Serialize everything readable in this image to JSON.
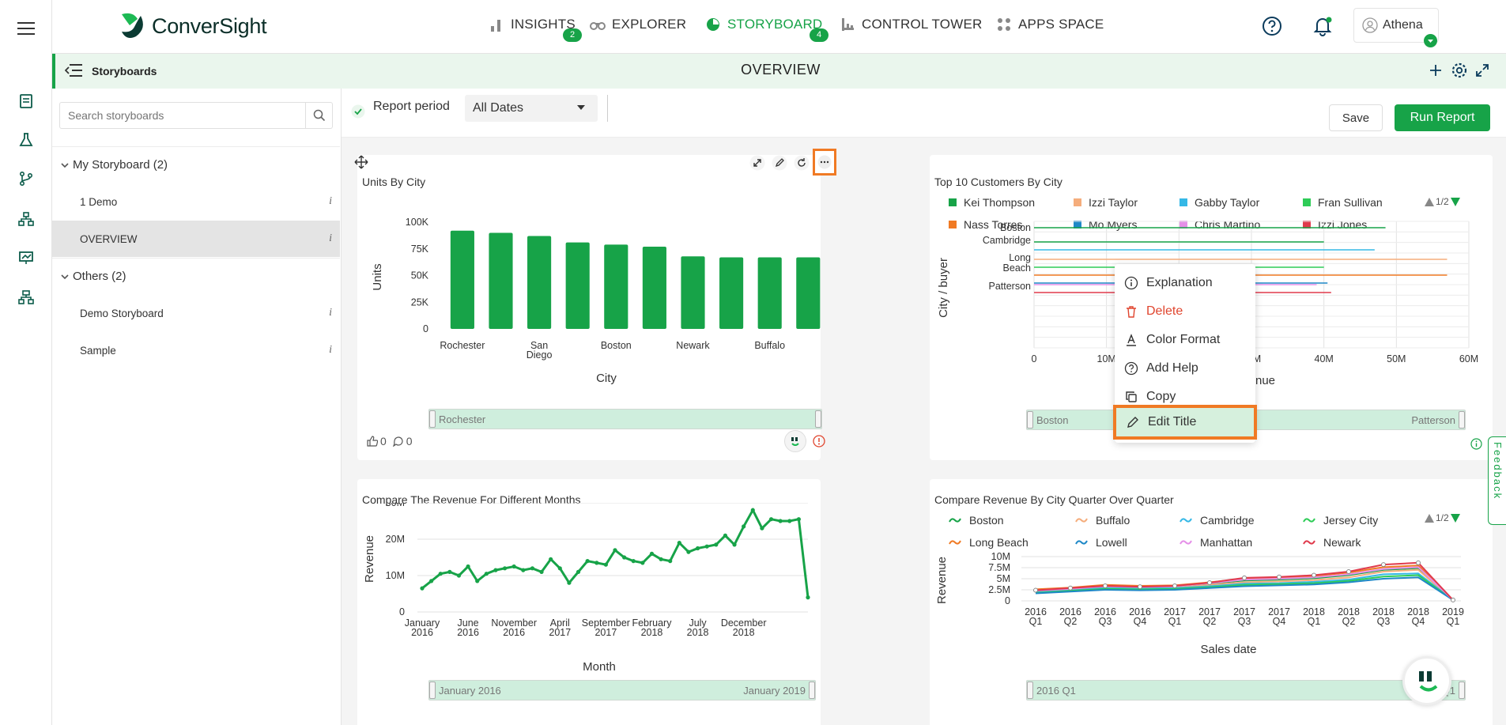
{
  "app": {
    "name": "ConverSight",
    "user": "Athena"
  },
  "nav": [
    {
      "label": "INSIGHTS",
      "badge": "2",
      "active": false,
      "icon": "bar-chart-icon"
    },
    {
      "label": "EXPLORER",
      "badge": "",
      "active": false,
      "icon": "binoculars-icon"
    },
    {
      "label": "STORYBOARD",
      "badge": "4",
      "active": true,
      "icon": "storyboard-icon"
    },
    {
      "label": "CONTROL TOWER",
      "badge": "",
      "active": false,
      "icon": "control-tower-icon"
    },
    {
      "label": "APPS SPACE",
      "badge": "",
      "active": false,
      "icon": "apps-icon"
    }
  ],
  "subheader": {
    "section": "Storyboards",
    "title": "OVERVIEW"
  },
  "sidebar": {
    "search_placeholder": "Search storyboards",
    "groups": [
      {
        "label": "My Storyboard (2)",
        "items": [
          "1 Demo",
          "OVERVIEW"
        ]
      },
      {
        "label": "Others (2)",
        "items": [
          "Demo Storyboard",
          "Sample"
        ]
      }
    ],
    "info_glyph": "i"
  },
  "toolbar": {
    "report_period_label": "Report period",
    "report_period_value": "All Dates",
    "save_label": "Save",
    "run_label": "Run Report"
  },
  "context_menu": {
    "items": [
      "Explanation",
      "Delete",
      "Color Format",
      "Add Help",
      "Copy",
      "Edit Title"
    ],
    "highlighted": "Edit Title"
  },
  "feedback_label": "Feedback",
  "card1": {
    "likes": "0",
    "comments": "0",
    "slider_start": "Rochester"
  },
  "card2": {
    "slider_start": "Boston",
    "slider_end": "Patterson",
    "legend_page": "1/2"
  },
  "card3": {
    "slider_start": "January 2016",
    "slider_end": "January 2019"
  },
  "card4": {
    "slider_start": "2016 Q1",
    "slider_end": "2019 Q1",
    "legend_page": "1/2"
  },
  "colors": {
    "accent": "#17a348",
    "highlight": "#f07a24",
    "delete": "#e0452e"
  },
  "chart_data": [
    {
      "type": "bar",
      "title": "Units By City",
      "xlabel": "City",
      "ylabel": "Units",
      "ylim": [
        0,
        100000
      ],
      "yticks": [
        "0",
        "25K",
        "50K",
        "75K",
        "100K"
      ],
      "categories": [
        "Rochester",
        "",
        "San Diego",
        "",
        "Boston",
        "",
        "Newark",
        "",
        "Buffalo",
        ""
      ],
      "values": [
        92000,
        90000,
        87000,
        81000,
        79000,
        77000,
        68000,
        67000,
        67000,
        67000
      ]
    },
    {
      "type": "bar",
      "title": "Top 10 Customers By City",
      "xlabel": "Revenue",
      "ylabel": "City / buyer",
      "xlim": [
        0,
        60000000
      ],
      "xticks": [
        "0",
        "10M",
        "20M",
        "30M",
        "40M",
        "50M",
        "60M"
      ],
      "categories": [
        "Boston",
        "Cambridge",
        "Long Beach",
        "Patterson"
      ],
      "series": [
        {
          "name": "Kei Thompson",
          "color": "#17a348",
          "values": [
            48500000,
            40000000,
            0,
            0
          ]
        },
        {
          "name": "Izzi Taylor",
          "color": "#f5ad7c",
          "values": [
            0,
            0,
            57000000,
            0
          ]
        },
        {
          "name": "Gabby Taylor",
          "color": "#35b8e6",
          "values": [
            0,
            47000000,
            0,
            0
          ]
        },
        {
          "name": "Fran Sullivan",
          "color": "#2ecc57",
          "values": [
            0,
            0,
            40000000,
            0
          ]
        },
        {
          "name": "Nass Torres",
          "color": "#f07a24",
          "values": [
            0,
            0,
            57000000,
            0
          ]
        },
        {
          "name": "Mo Myers",
          "color": "#1e88c7",
          "values": [
            0,
            0,
            40500000,
            0
          ]
        },
        {
          "name": "Chris Martino",
          "color": "#e58fe8",
          "values": [
            0,
            0,
            0,
            39000000
          ]
        },
        {
          "name": "Izzi Jones",
          "color": "#e03a4c",
          "values": [
            0,
            0,
            0,
            41000000
          ]
        }
      ]
    },
    {
      "type": "line",
      "title": "Compare The Revenue For Different Months",
      "xlabel": "Month",
      "ylabel": "Revenue",
      "ylim": [
        0,
        30000000
      ],
      "yticks": [
        "0",
        "10M",
        "20M",
        "30M"
      ],
      "xticks": [
        "January 2016",
        "June 2016",
        "November 2016",
        "April 2017",
        "September 2017",
        "February 2018",
        "July 2018",
        "December 2018"
      ],
      "values": [
        6.5,
        8.5,
        10.5,
        11,
        10,
        12.5,
        8.5,
        10.5,
        11.5,
        12,
        12.5,
        11.5,
        12,
        11,
        14.5,
        12,
        8,
        11,
        14,
        13.5,
        13,
        17,
        15,
        14,
        13.5,
        16,
        14.5,
        14,
        19,
        16.5,
        17.5,
        18,
        18.5,
        21,
        18.5,
        23.5,
        28,
        23,
        25.5,
        25,
        25,
        25.5,
        4
      ]
    },
    {
      "type": "line",
      "title": "Compare Revenue By City Quarter Over Quarter",
      "xlabel": "Sales date",
      "ylabel": "Revenue",
      "ylim": [
        0,
        10000000
      ],
      "yticks": [
        "0",
        "2.5M",
        "5M",
        "7.5M",
        "10M"
      ],
      "categories": [
        "2016 Q1",
        "2016 Q2",
        "2016 Q3",
        "2016 Q4",
        "2017 Q1",
        "2017 Q2",
        "2017 Q3",
        "2017 Q4",
        "2018 Q1",
        "2018 Q2",
        "2018 Q3",
        "2018 Q4",
        "2019 Q1"
      ],
      "series": [
        {
          "name": "Boston",
          "color": "#17a348",
          "values": [
            2.5,
            2.8,
            3.2,
            3.0,
            3.2,
            3.9,
            4.6,
            4.8,
            5.1,
            5.8,
            7.0,
            7.4,
            0.2
          ]
        },
        {
          "name": "Buffalo",
          "color": "#f5ad7c",
          "values": [
            2.2,
            2.6,
            3.0,
            2.9,
            3.0,
            3.6,
            4.2,
            4.4,
            4.7,
            5.3,
            6.6,
            7.0,
            0.2
          ]
        },
        {
          "name": "Cambridge",
          "color": "#35b8e6",
          "values": [
            2.0,
            2.5,
            2.9,
            2.8,
            2.9,
            3.3,
            3.9,
            4.0,
            4.3,
            4.8,
            6.0,
            6.2,
            0.2
          ]
        },
        {
          "name": "Jersey City",
          "color": "#2ecc57",
          "values": [
            1.8,
            2.3,
            2.7,
            2.6,
            2.7,
            3.1,
            3.6,
            3.8,
            4.0,
            4.5,
            5.5,
            5.8,
            0.2
          ]
        },
        {
          "name": "Long Beach",
          "color": "#f07a24",
          "values": [
            2.6,
            3.0,
            3.6,
            3.4,
            3.5,
            4.2,
            5.0,
            5.2,
            5.6,
            6.4,
            7.6,
            8.0,
            0.2
          ]
        },
        {
          "name": "Lowell",
          "color": "#1e88c7",
          "values": [
            1.7,
            2.1,
            2.5,
            2.4,
            2.5,
            2.9,
            3.3,
            3.5,
            3.7,
            4.2,
            5.0,
            5.3,
            0.2
          ]
        },
        {
          "name": "Manhattan",
          "color": "#e58fe8",
          "values": [
            2.3,
            2.7,
            3.3,
            3.1,
            3.3,
            4.0,
            4.8,
            5.0,
            5.3,
            6.0,
            7.2,
            7.6,
            0.2
          ]
        },
        {
          "name": "Newark",
          "color": "#e03a4c",
          "values": [
            2.4,
            2.9,
            3.4,
            3.2,
            3.4,
            4.1,
            5.2,
            5.4,
            5.8,
            6.6,
            8.2,
            8.6,
            0.2
          ]
        }
      ]
    }
  ]
}
